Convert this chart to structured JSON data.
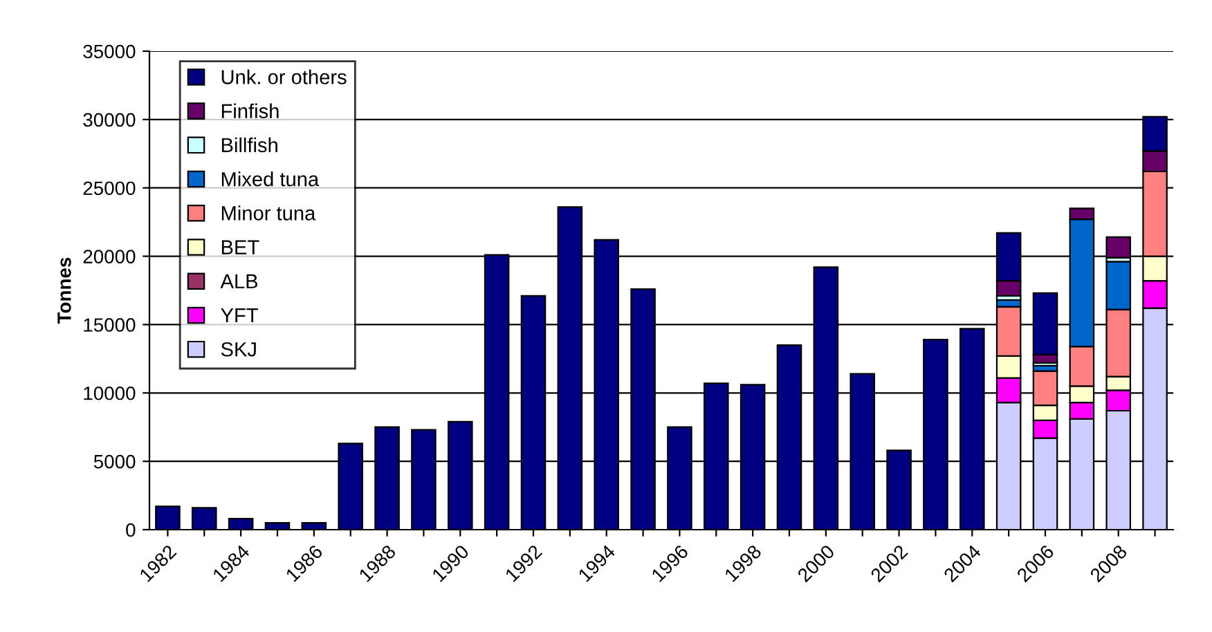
{
  "chart_data": {
    "type": "bar",
    "stacked": true,
    "ylabel": "Tonnes",
    "categories": [
      "1982",
      null,
      "1984",
      null,
      "1986",
      null,
      "1988",
      null,
      "1990",
      null,
      "1992",
      null,
      "1994",
      null,
      "1996",
      null,
      "1998",
      null,
      "2000",
      null,
      "2002",
      null,
      "2004",
      null,
      "2006",
      null,
      "2008",
      null
    ],
    "series": [
      {
        "name": "SKJ",
        "color": "#ccccff",
        "values": [
          null,
          null,
          null,
          null,
          null,
          null,
          null,
          null,
          null,
          null,
          null,
          null,
          null,
          null,
          null,
          null,
          null,
          null,
          null,
          null,
          null,
          null,
          null,
          9300,
          6700,
          8100,
          8700,
          16200
        ]
      },
      {
        "name": "YFT",
        "color": "#ff00ff",
        "values": [
          null,
          null,
          null,
          null,
          null,
          null,
          null,
          null,
          null,
          null,
          null,
          null,
          null,
          null,
          null,
          null,
          null,
          null,
          null,
          null,
          null,
          null,
          null,
          1800,
          1300,
          1200,
          1500,
          2000
        ]
      },
      {
        "name": "ALB",
        "color": "#993366",
        "values": [
          null,
          null,
          null,
          null,
          null,
          null,
          null,
          null,
          null,
          null,
          null,
          null,
          null,
          null,
          null,
          null,
          null,
          null,
          null,
          null,
          null,
          null,
          null,
          null,
          null,
          null,
          null,
          null
        ]
      },
      {
        "name": "BET",
        "color": "#ffffcc",
        "values": [
          null,
          null,
          null,
          null,
          null,
          null,
          null,
          null,
          null,
          null,
          null,
          null,
          null,
          null,
          null,
          null,
          null,
          null,
          null,
          null,
          null,
          null,
          null,
          1600,
          1100,
          1200,
          1000,
          1800
        ]
      },
      {
        "name": "Minor tuna",
        "color": "#ff8080",
        "values": [
          null,
          null,
          null,
          null,
          null,
          null,
          null,
          null,
          null,
          null,
          null,
          null,
          null,
          null,
          null,
          null,
          null,
          null,
          null,
          null,
          null,
          null,
          null,
          3600,
          2500,
          2900,
          4900,
          6200
        ]
      },
      {
        "name": "Mixed tuna",
        "color": "#0066cc",
        "values": [
          null,
          null,
          null,
          null,
          null,
          null,
          null,
          null,
          null,
          null,
          null,
          null,
          null,
          null,
          null,
          null,
          null,
          null,
          null,
          null,
          null,
          null,
          null,
          500,
          400,
          9300,
          3500,
          null
        ]
      },
      {
        "name": "Billfish",
        "color": "#ccffff",
        "values": [
          null,
          null,
          null,
          null,
          null,
          null,
          null,
          null,
          null,
          null,
          null,
          null,
          null,
          null,
          null,
          null,
          null,
          null,
          null,
          null,
          null,
          null,
          null,
          300,
          200,
          null,
          300,
          null
        ]
      },
      {
        "name": "Finfish",
        "color": "#660066",
        "values": [
          null,
          null,
          null,
          null,
          null,
          null,
          null,
          null,
          null,
          null,
          null,
          null,
          null,
          null,
          null,
          null,
          null,
          null,
          null,
          null,
          null,
          null,
          null,
          1100,
          600,
          800,
          1500,
          1500
        ]
      },
      {
        "name": "Unk. or others",
        "color": "#000080",
        "values": [
          1700,
          1600,
          800,
          500,
          500,
          6300,
          7500,
          7300,
          7900,
          20100,
          17100,
          23600,
          21200,
          17600,
          7500,
          10700,
          10600,
          13500,
          19200,
          11400,
          5800,
          13900,
          14700,
          3500,
          4500,
          null,
          null,
          2500
        ]
      }
    ],
    "ylim": [
      0,
      35000
    ],
    "yticks": [
      0,
      5000,
      10000,
      15000,
      20000,
      25000,
      30000,
      35000
    ],
    "grid": "y",
    "legend": "top left"
  }
}
